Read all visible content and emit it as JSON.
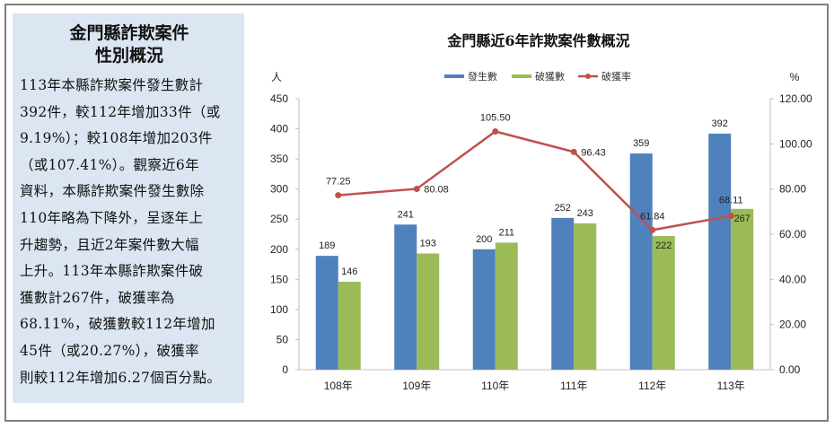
{
  "sidebar": {
    "title_line1": "金門縣詐欺案件",
    "title_line2": "性別概況",
    "body_lines": [
      "113年本縣詐欺案件發生數計",
      "392件，較112年增加33件（或",
      "9.19%）；較108年增加203件",
      "（或107.41%）。觀察近6年",
      "資料，本縣詐欺案件發生數除",
      "110年略為下降外，呈逐年上",
      "升趨勢，且近2年案件數大幅",
      "上升。113年本縣詐欺案件破",
      "獲數計267件，破獲率為",
      "68.11%，破獲數較112年增加",
      "45件（或20.27%），破獲率",
      "則較112年增加6.27個百分點。"
    ]
  },
  "colors": {
    "occurrences": "#4f81bd",
    "solved": "#9bbb59",
    "rate": "#c0504d",
    "panel_bg": "#dce6f2",
    "frame": "#7f7f7f"
  },
  "chart_data": {
    "type": "bar",
    "title": "金門縣近6年詐欺案件數概況",
    "categories": [
      "108年",
      "109年",
      "110年",
      "111年",
      "112年",
      "113年"
    ],
    "series": [
      {
        "name": "發生數",
        "type": "bar",
        "axis": "left",
        "values": [
          189,
          241,
          200,
          252,
          359,
          392
        ]
      },
      {
        "name": "破獲數",
        "type": "bar",
        "axis": "left",
        "values": [
          146,
          193,
          211,
          243,
          222,
          267
        ]
      },
      {
        "name": "破獲率",
        "type": "line",
        "axis": "right",
        "values": [
          77.25,
          80.08,
          105.5,
          96.43,
          61.84,
          68.11
        ]
      }
    ],
    "rate_labels": [
      "77.25",
      "80.08",
      "105.50",
      "96.43",
      "61.84",
      "68.11"
    ],
    "ylabel": "人",
    "y2label": "%",
    "ylim": [
      0,
      450
    ],
    "y2lim": [
      0,
      120
    ],
    "yticks": [
      "0",
      "50",
      "100",
      "150",
      "200",
      "250",
      "300",
      "350",
      "400",
      "450"
    ],
    "y2ticks": [
      "0.00",
      "20.00",
      "40.00",
      "60.00",
      "80.00",
      "100.00",
      "120.00"
    ],
    "legend": [
      "發生數",
      "破獲數",
      "破獲率"
    ],
    "legend_position": "top",
    "grid": false
  }
}
